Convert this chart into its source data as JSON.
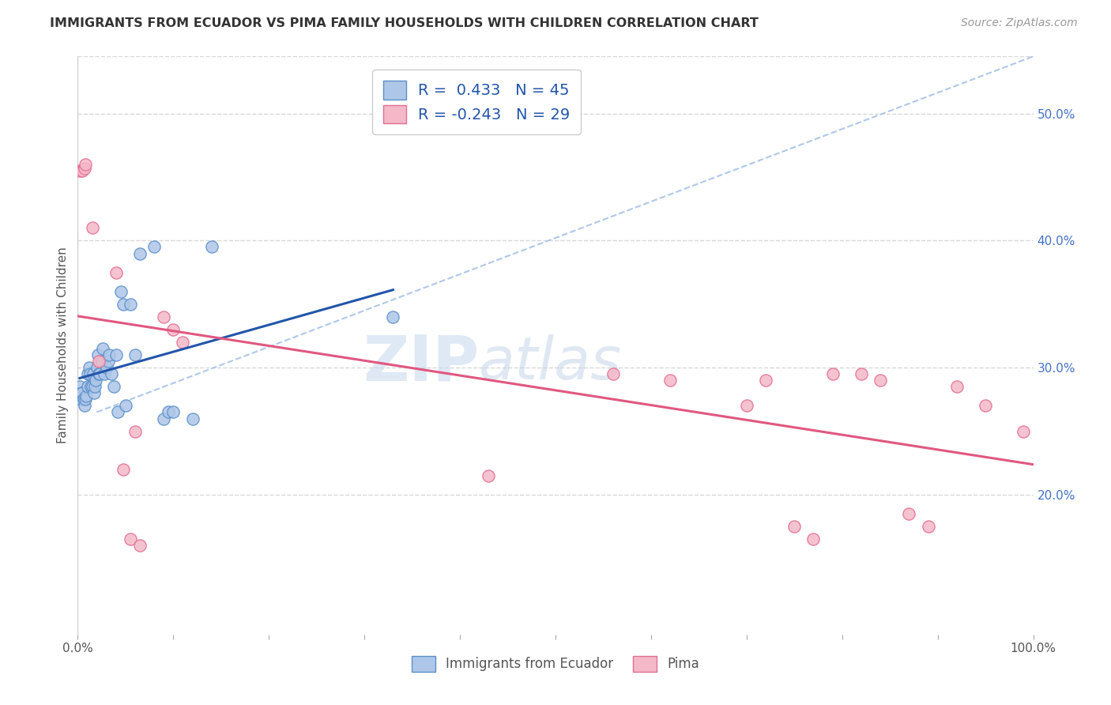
{
  "title": "IMMIGRANTS FROM ECUADOR VS PIMA FAMILY HOUSEHOLDS WITH CHILDREN CORRELATION CHART",
  "source": "Source: ZipAtlas.com",
  "ylabel": "Family Households with Children",
  "legend_bottom": [
    "Immigrants from Ecuador",
    "Pima"
  ],
  "blue_r": 0.433,
  "blue_n": 45,
  "pink_r": -0.243,
  "pink_n": 29,
  "blue_color": "#aec6e8",
  "pink_color": "#f4b8c8",
  "blue_edge_color": "#5b8fc9",
  "pink_edge_color": "#e07090",
  "blue_line_color": "#2255aa",
  "pink_line_color": "#e05880",
  "dashed_line_color": "#b0c8e8",
  "xlim": [
    0.0,
    1.0
  ],
  "ylim": [
    0.09,
    0.545
  ],
  "x_ticks": [
    0.0,
    0.1,
    0.2,
    0.3,
    0.4,
    0.5,
    0.6,
    0.7,
    0.8,
    0.9,
    1.0
  ],
  "x_tick_labels": [
    "0.0%",
    "",
    "",
    "",
    "",
    "",
    "",
    "",
    "",
    "",
    "100.0%"
  ],
  "y_ticks": [
    0.2,
    0.3,
    0.4,
    0.5
  ],
  "y_tick_labels_right": [
    "20.0%",
    "30.0%",
    "40.0%",
    "50.0%"
  ],
  "blue_scatter_x": [
    0.002,
    0.003,
    0.004,
    0.005,
    0.006,
    0.007,
    0.008,
    0.009,
    0.01,
    0.01,
    0.012,
    0.013,
    0.014,
    0.015,
    0.016,
    0.017,
    0.018,
    0.019,
    0.02,
    0.021,
    0.022,
    0.023,
    0.025,
    0.026,
    0.028,
    0.03,
    0.032,
    0.033,
    0.035,
    0.038,
    0.04,
    0.042,
    0.045,
    0.048,
    0.05,
    0.055,
    0.06,
    0.065,
    0.08,
    0.09,
    0.095,
    0.1,
    0.12,
    0.14,
    0.33
  ],
  "blue_scatter_y": [
    0.285,
    0.275,
    0.28,
    0.28,
    0.275,
    0.27,
    0.275,
    0.278,
    0.285,
    0.295,
    0.3,
    0.295,
    0.285,
    0.285,
    0.295,
    0.28,
    0.285,
    0.29,
    0.3,
    0.31,
    0.295,
    0.295,
    0.305,
    0.315,
    0.295,
    0.3,
    0.305,
    0.31,
    0.295,
    0.285,
    0.31,
    0.265,
    0.36,
    0.35,
    0.27,
    0.35,
    0.31,
    0.39,
    0.395,
    0.26,
    0.265,
    0.265,
    0.26,
    0.395,
    0.34
  ],
  "pink_scatter_x": [
    0.002,
    0.005,
    0.007,
    0.008,
    0.015,
    0.022,
    0.04,
    0.048,
    0.055,
    0.06,
    0.065,
    0.09,
    0.1,
    0.11,
    0.43,
    0.56,
    0.62,
    0.7,
    0.72,
    0.75,
    0.77,
    0.79,
    0.82,
    0.84,
    0.87,
    0.89,
    0.92,
    0.95,
    0.99
  ],
  "pink_scatter_y": [
    0.455,
    0.455,
    0.457,
    0.46,
    0.41,
    0.305,
    0.375,
    0.22,
    0.165,
    0.25,
    0.16,
    0.34,
    0.33,
    0.32,
    0.215,
    0.295,
    0.29,
    0.27,
    0.29,
    0.175,
    0.165,
    0.295,
    0.295,
    0.29,
    0.185,
    0.175,
    0.285,
    0.27,
    0.25
  ],
  "watermark_zip": "ZIP",
  "watermark_atlas": "atlas",
  "background_color": "#ffffff",
  "grid_color": "#d8d8d8"
}
